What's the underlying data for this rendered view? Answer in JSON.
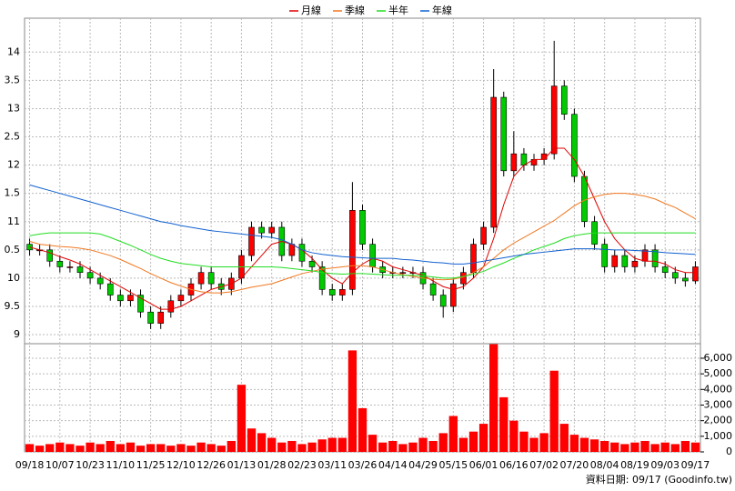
{
  "chart_data": [
    {
      "type": "candlestick",
      "categories": [
        "09/18",
        null,
        null,
        "10/07",
        null,
        null,
        "10/23",
        null,
        null,
        "11/10",
        null,
        null,
        "11/25",
        null,
        null,
        "12/10",
        null,
        null,
        "12/26",
        null,
        null,
        "01/13",
        null,
        null,
        "01/28",
        null,
        null,
        "02/23",
        null,
        null,
        "03/11",
        null,
        null,
        "03/26",
        null,
        null,
        "04/14",
        null,
        null,
        "04/29",
        null,
        null,
        "05/15",
        null,
        null,
        "06/01",
        null,
        null,
        "06/16",
        null,
        null,
        "07/02",
        null,
        null,
        "07/20",
        null,
        null,
        "08/04",
        null,
        null,
        "08/19",
        null,
        null,
        "09/03",
        null,
        null,
        "09/17"
      ],
      "open": [
        10.6,
        10.5,
        10.5,
        10.3,
        10.2,
        10.2,
        10.1,
        10.0,
        9.9,
        9.7,
        9.6,
        9.7,
        9.4,
        9.2,
        9.4,
        9.6,
        9.7,
        9.9,
        10.1,
        9.9,
        9.8,
        10.0,
        10.4,
        10.9,
        10.8,
        10.9,
        10.4,
        10.6,
        10.3,
        10.2,
        9.8,
        9.7,
        9.8,
        11.2,
        10.6,
        10.2,
        10.1,
        10.1,
        10.1,
        10.1,
        9.9,
        9.7,
        9.5,
        9.9,
        10.1,
        10.6,
        10.9,
        13.2,
        11.9,
        12.2,
        12.0,
        12.1,
        12.2,
        13.4,
        12.9,
        11.8,
        11.0,
        10.6,
        10.2,
        10.4,
        10.2,
        10.3,
        10.5,
        10.2,
        10.1,
        10.0,
        9.95
      ],
      "high": [
        10.7,
        10.6,
        10.6,
        10.4,
        10.3,
        10.3,
        10.2,
        10.1,
        10.0,
        9.8,
        9.8,
        9.8,
        9.5,
        9.5,
        9.7,
        9.8,
        10.0,
        10.2,
        10.2,
        10.0,
        10.1,
        10.5,
        11.0,
        11.0,
        11.0,
        11.0,
        10.7,
        10.7,
        10.4,
        10.3,
        9.9,
        9.9,
        11.7,
        11.3,
        10.7,
        10.3,
        10.2,
        10.2,
        10.2,
        10.2,
        10.0,
        9.8,
        10.0,
        10.2,
        10.7,
        11.0,
        13.7,
        13.3,
        12.6,
        12.3,
        12.2,
        12.3,
        14.2,
        13.5,
        13.0,
        11.9,
        11.1,
        10.7,
        10.5,
        10.5,
        10.4,
        10.6,
        10.6,
        10.3,
        10.2,
        10.1,
        10.3
      ],
      "low": [
        10.4,
        10.4,
        10.2,
        10.1,
        10.1,
        10.0,
        9.9,
        9.8,
        9.6,
        9.5,
        9.5,
        9.3,
        9.1,
        9.1,
        9.3,
        9.5,
        9.6,
        9.8,
        9.8,
        9.7,
        9.7,
        9.9,
        10.3,
        10.7,
        10.7,
        10.3,
        10.3,
        10.2,
        10.1,
        9.7,
        9.6,
        9.6,
        9.7,
        10.5,
        10.1,
        10.0,
        10.0,
        10.0,
        10.0,
        9.8,
        9.6,
        9.3,
        9.4,
        9.8,
        10.0,
        10.5,
        10.8,
        11.8,
        11.8,
        11.9,
        11.9,
        12.0,
        12.1,
        12.8,
        11.7,
        10.9,
        10.5,
        10.1,
        10.1,
        10.1,
        10.1,
        10.2,
        10.1,
        10.0,
        9.9,
        9.85,
        9.9
      ],
      "close": [
        10.5,
        10.5,
        10.3,
        10.2,
        10.2,
        10.1,
        10.0,
        9.9,
        9.7,
        9.6,
        9.7,
        9.4,
        9.2,
        9.4,
        9.6,
        9.7,
        9.9,
        10.1,
        9.9,
        9.8,
        10.0,
        10.4,
        10.9,
        10.8,
        10.9,
        10.4,
        10.6,
        10.3,
        10.2,
        9.8,
        9.7,
        9.8,
        11.2,
        10.6,
        10.2,
        10.1,
        10.1,
        10.1,
        10.1,
        9.9,
        9.7,
        9.5,
        9.9,
        10.1,
        10.6,
        10.9,
        13.2,
        11.9,
        12.2,
        12.0,
        12.1,
        12.2,
        13.4,
        12.9,
        11.8,
        11.0,
        10.6,
        10.2,
        10.4,
        10.2,
        10.3,
        10.5,
        10.2,
        10.1,
        10.0,
        9.95,
        10.2
      ],
      "up_color": "#ff0000",
      "down_color": "#00cc00",
      "series": [
        {
          "name": "月線",
          "color": "#e00000",
          "values": [
            10.55,
            10.5,
            10.45,
            10.38,
            10.32,
            10.25,
            10.15,
            10.05,
            9.95,
            9.85,
            9.75,
            9.65,
            9.55,
            9.45,
            9.45,
            9.5,
            9.6,
            9.7,
            9.8,
            9.85,
            9.9,
            10.0,
            10.2,
            10.4,
            10.6,
            10.65,
            10.6,
            10.5,
            10.35,
            10.15,
            10.0,
            9.9,
            10.1,
            10.25,
            10.35,
            10.3,
            10.2,
            10.15,
            10.1,
            10.05,
            9.95,
            9.85,
            9.8,
            9.85,
            10.0,
            10.2,
            10.7,
            11.3,
            11.8,
            12.0,
            12.1,
            12.1,
            12.3,
            12.3,
            12.1,
            11.8,
            11.4,
            11.0,
            10.7,
            10.5,
            10.35,
            10.3,
            10.3,
            10.25,
            10.15,
            10.1,
            10.1
          ]
        },
        {
          "name": "季線",
          "color": "#f07820",
          "values": [
            10.65,
            10.6,
            10.58,
            10.56,
            10.55,
            10.53,
            10.5,
            10.45,
            10.4,
            10.33,
            10.25,
            10.17,
            10.08,
            10.0,
            9.92,
            9.86,
            9.8,
            9.76,
            9.74,
            9.74,
            9.76,
            9.8,
            9.84,
            9.87,
            9.9,
            9.96,
            10.02,
            10.08,
            10.12,
            10.16,
            10.18,
            10.2,
            10.22,
            10.22,
            10.2,
            10.15,
            10.1,
            10.06,
            10.03,
            10.0,
            9.98,
            9.97,
            9.98,
            10.02,
            10.1,
            10.2,
            10.35,
            10.5,
            10.62,
            10.72,
            10.82,
            10.92,
            11.02,
            11.15,
            11.28,
            11.38,
            11.44,
            11.48,
            11.5,
            11.5,
            11.48,
            11.45,
            11.4,
            11.32,
            11.25,
            11.15,
            11.05
          ]
        },
        {
          "name": "半年",
          "color": "#22dd22",
          "values": [
            10.75,
            10.78,
            10.8,
            10.8,
            10.8,
            10.8,
            10.8,
            10.78,
            10.72,
            10.65,
            10.58,
            10.5,
            10.42,
            10.35,
            10.3,
            10.26,
            10.24,
            10.22,
            10.2,
            10.2,
            10.2,
            10.2,
            10.2,
            10.2,
            10.2,
            10.19,
            10.17,
            10.15,
            10.13,
            10.1,
            10.08,
            10.07,
            10.08,
            10.08,
            10.07,
            10.06,
            10.05,
            10.05,
            10.05,
            10.04,
            10.02,
            10.0,
            10.0,
            10.03,
            10.07,
            10.12,
            10.2,
            10.27,
            10.35,
            10.42,
            10.5,
            10.56,
            10.62,
            10.7,
            10.75,
            10.78,
            10.8,
            10.8,
            10.8,
            10.8,
            10.8,
            10.8,
            10.8,
            10.8,
            10.8,
            10.8,
            10.8
          ]
        },
        {
          "name": "年線",
          "color": "#1060d0",
          "values": [
            11.65,
            11.6,
            11.55,
            11.5,
            11.45,
            11.4,
            11.35,
            11.3,
            11.25,
            11.2,
            11.15,
            11.1,
            11.05,
            11.0,
            10.97,
            10.93,
            10.9,
            10.87,
            10.84,
            10.82,
            10.8,
            10.78,
            10.76,
            10.74,
            10.72,
            10.68,
            10.6,
            10.5,
            10.45,
            10.42,
            10.4,
            10.38,
            10.37,
            10.36,
            10.35,
            10.35,
            10.35,
            10.33,
            10.32,
            10.3,
            10.28,
            10.27,
            10.25,
            10.25,
            10.27,
            10.3,
            10.33,
            10.36,
            10.39,
            10.42,
            10.44,
            10.46,
            10.48,
            10.5,
            10.52,
            10.52,
            10.52,
            10.51,
            10.5,
            10.5,
            10.49,
            10.48,
            10.47,
            10.45,
            10.44,
            10.43,
            10.42
          ]
        }
      ],
      "ylim": [
        8.84,
        14.6
      ],
      "yticks": [
        9,
        9.5,
        10,
        {
          "value": 10.5,
          "label": "0.5"
        },
        11,
        {
          "value": 11.5,
          "label": "1.5"
        },
        12,
        {
          "value": 12.5,
          "label": "2.5"
        },
        13,
        {
          "value": 13.5,
          "label": "3.5"
        },
        14
      ],
      "grid": true
    },
    {
      "type": "bar",
      "color": "#ff0000",
      "values": [
        500,
        400,
        500,
        600,
        500,
        400,
        600,
        500,
        700,
        500,
        600,
        400,
        500,
        500,
        400,
        500,
        400,
        600,
        500,
        400,
        700,
        4300,
        1500,
        1200,
        900,
        600,
        700,
        500,
        600,
        800,
        900,
        900,
        6500,
        2800,
        1100,
        600,
        700,
        500,
        600,
        900,
        700,
        1200,
        2300,
        900,
        1300,
        1800,
        6900,
        3500,
        2000,
        1300,
        900,
        1200,
        5200,
        1800,
        1100,
        900,
        800,
        700,
        600,
        500,
        600,
        700,
        500,
        600,
        500,
        700,
        600
      ],
      "ylim": [
        0,
        6930
      ],
      "yticks": [
        0,
        {
          "value": 1000,
          "label": "1,000"
        },
        {
          "value": 2000,
          "label": "2,000"
        },
        {
          "value": 3000,
          "label": "3,000"
        },
        {
          "value": 4000,
          "label": "4,000"
        },
        {
          "value": 5000,
          "label": "5,000"
        },
        {
          "value": 6000,
          "label": "6,000"
        }
      ],
      "grid": true
    }
  ],
  "footnote": "資料日期: 09/17 (Goodinfo.tw)"
}
